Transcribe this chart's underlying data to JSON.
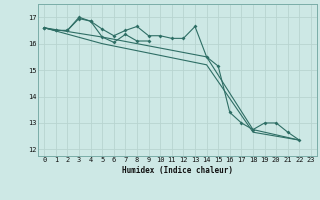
{
  "title": "",
  "xlabel": "Humidex (Indice chaleur)",
  "bg_color": "#cde8e5",
  "line_color": "#2e6e65",
  "grid_color": "#b8d4d0",
  "spine_color": "#7aada8",
  "xlim": [
    -0.5,
    23.5
  ],
  "ylim": [
    11.75,
    17.5
  ],
  "yticks": [
    12,
    13,
    14,
    15,
    16,
    17
  ],
  "xticks": [
    0,
    1,
    2,
    3,
    4,
    5,
    6,
    7,
    8,
    9,
    10,
    11,
    12,
    13,
    14,
    15,
    16,
    17,
    18,
    19,
    20,
    21,
    22,
    23
  ],
  "line1_x": [
    0,
    1,
    2,
    3,
    4,
    5,
    6,
    7,
    8,
    9,
    10,
    11,
    12,
    13,
    14,
    15,
    16,
    17,
    18,
    19,
    20,
    21,
    22
  ],
  "line1_y": [
    16.6,
    16.5,
    16.5,
    17.0,
    16.85,
    16.55,
    16.3,
    16.5,
    16.65,
    16.3,
    16.3,
    16.2,
    16.2,
    16.65,
    15.5,
    15.15,
    13.4,
    13.0,
    12.75,
    13.0,
    13.0,
    12.65,
    12.35
  ],
  "line2_x": [
    0,
    1,
    2,
    3,
    4,
    5,
    6,
    7,
    8,
    9
  ],
  "line2_y": [
    16.6,
    16.5,
    16.5,
    16.95,
    16.85,
    16.25,
    16.05,
    16.35,
    16.1,
    16.1
  ],
  "line3_x": [
    0,
    5,
    14,
    18,
    22
  ],
  "line3_y": [
    16.6,
    16.25,
    15.5,
    12.75,
    12.35
  ],
  "line4_x": [
    0,
    5,
    14,
    18,
    22
  ],
  "line4_y": [
    16.6,
    16.0,
    15.2,
    12.65,
    12.35
  ]
}
